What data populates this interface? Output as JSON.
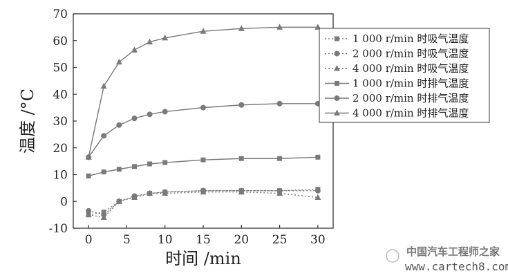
{
  "chart_data": {
    "type": "line",
    "xlabel": "时间 /min",
    "ylabel": "温度 /°C",
    "xlim": [
      -2,
      32
    ],
    "ylim": [
      -10,
      70
    ],
    "x_ticks": [
      0,
      5,
      10,
      15,
      20,
      25,
      30
    ],
    "y_ticks": [
      -10,
      0,
      10,
      20,
      30,
      40,
      50,
      60,
      70
    ],
    "grid": false,
    "legend_position": "top-right",
    "series": [
      {
        "name": "1 000 r/min 时吸气温度",
        "style": "dotted",
        "marker": "square",
        "x": [
          0,
          2,
          4,
          6,
          8,
          10,
          15,
          20,
          25,
          30
        ],
        "y": [
          -5,
          -4,
          0,
          1.5,
          3,
          3.5,
          4,
          4,
          4,
          4.5
        ]
      },
      {
        "name": "2 000 r/min 时吸气温度",
        "style": "dotted",
        "marker": "circle",
        "x": [
          0,
          2,
          4,
          6,
          8,
          10,
          15,
          20,
          25,
          30
        ],
        "y": [
          -3.5,
          -5,
          0,
          2,
          3,
          3.5,
          4,
          4,
          4,
          4
        ]
      },
      {
        "name": "4 000 r/min 时吸气温度",
        "style": "dotted",
        "marker": "triangle",
        "x": [
          0,
          2,
          4,
          6,
          8,
          10,
          15,
          20,
          25,
          30
        ],
        "y": [
          -5,
          -6,
          0,
          1.5,
          3,
          3,
          3.5,
          3.5,
          3,
          1.5
        ]
      },
      {
        "name": "1 000 r/min 时排气温度",
        "style": "solid",
        "marker": "square",
        "x": [
          0,
          2,
          4,
          6,
          8,
          10,
          15,
          20,
          25,
          30
        ],
        "y": [
          9.5,
          11,
          12,
          13,
          14,
          14.5,
          15.5,
          16,
          16,
          16.5
        ]
      },
      {
        "name": "2 000 r/min 时排气温度",
        "style": "solid",
        "marker": "circle",
        "x": [
          0,
          2,
          4,
          6,
          8,
          10,
          15,
          20,
          25,
          30
        ],
        "y": [
          16.5,
          24.5,
          28.5,
          31,
          32.5,
          33.5,
          35,
          36,
          36.5,
          36.5
        ]
      },
      {
        "name": "4 000 r/min 时排气温度",
        "style": "solid",
        "marker": "triangle",
        "x": [
          0,
          2,
          4,
          6,
          8,
          10,
          15,
          20,
          25,
          30
        ],
        "y": [
          16.5,
          43,
          52,
          56.5,
          59.5,
          61,
          63.5,
          64.5,
          65,
          65
        ]
      }
    ],
    "colors": {
      "line": "#777777",
      "marker": "#7a7a7a",
      "axis": "#333333"
    }
  },
  "watermark": {
    "line1": "中国汽车工程师之家",
    "line2": "www.cartech8.com"
  }
}
